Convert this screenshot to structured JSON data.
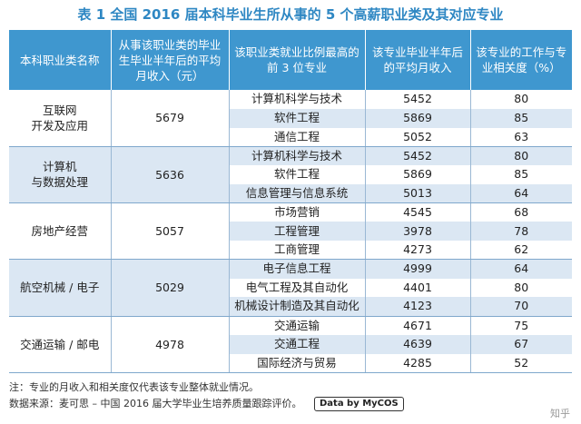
{
  "title": "表 1  全国 2016 届本科毕业生所从事的 5 个高薪职业类及其对应专业",
  "headers": [
    "本科职业类名称",
    "从事该职业类的毕业生毕业半年后的平均月收入（元）",
    "该职业类就业比例最高的前 3 位专业",
    "该专业毕业半年后的平均月收入",
    "该专业的工作与专业相关度（%）"
  ],
  "groups": [
    {
      "name": "互联网\n开发及应用",
      "income": "5679",
      "rows": [
        {
          "major": "计算机科学与技术",
          "income": "5452",
          "rel": "80"
        },
        {
          "major": "软件工程",
          "income": "5869",
          "rel": "85"
        },
        {
          "major": "通信工程",
          "income": "5052",
          "rel": "63"
        }
      ]
    },
    {
      "name": "计算机\n与数据处理",
      "income": "5636",
      "rows": [
        {
          "major": "计算机科学与技术",
          "income": "5452",
          "rel": "80"
        },
        {
          "major": "软件工程",
          "income": "5869",
          "rel": "85"
        },
        {
          "major": "信息管理与信息系统",
          "income": "5013",
          "rel": "64"
        }
      ]
    },
    {
      "name": "房地产经营",
      "income": "5057",
      "rows": [
        {
          "major": "市场营销",
          "income": "4545",
          "rel": "68"
        },
        {
          "major": "工程管理",
          "income": "3978",
          "rel": "78"
        },
        {
          "major": "工商管理",
          "income": "4273",
          "rel": "62"
        }
      ]
    },
    {
      "name": "航空机械 / 电子",
      "income": "5029",
      "rows": [
        {
          "major": "电子信息工程",
          "income": "4999",
          "rel": "64"
        },
        {
          "major": "电气工程及其自动化",
          "income": "4401",
          "rel": "80"
        },
        {
          "major": "机械设计制造及其自动化",
          "income": "4123",
          "rel": "70"
        }
      ]
    },
    {
      "name": "交通运输 / 邮电",
      "income": "4978",
      "rows": [
        {
          "major": "交通运输",
          "income": "4671",
          "rel": "75"
        },
        {
          "major": "交通工程",
          "income": "4639",
          "rel": "67"
        },
        {
          "major": "国际经济与贸易",
          "income": "4285",
          "rel": "52"
        }
      ]
    }
  ],
  "notes": {
    "note": "注：专业的月收入和相关度仅代表该专业整体就业情况。",
    "source": "数据来源：麦可思 – 中国 2016 届大学毕业生培养质量跟踪评价。",
    "badge": "Data by MyCOS"
  },
  "watermark": "知乎"
}
